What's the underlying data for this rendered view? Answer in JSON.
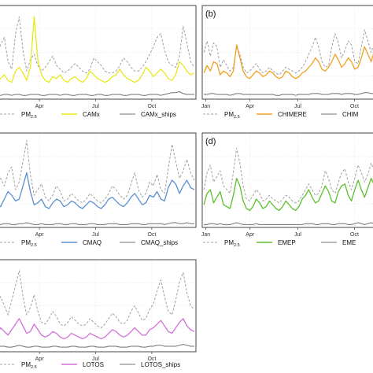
{
  "chart_data": [
    {
      "type": "line",
      "panel_label": "",
      "x_ticks": [
        "Apr",
        "Jul",
        "Oct"
      ],
      "legend": [
        {
          "text": "PM",
          "sub": "2.5"
        },
        {
          "text": "CAMx",
          "sub": ""
        },
        {
          "text": "CAMx_ships",
          "sub": ""
        }
      ],
      "colors": {
        "pm25": "#a0a0a0",
        "model": "#e8e81c",
        "ships": "#707070"
      },
      "ylim": [
        0,
        100
      ],
      "grid": true,
      "series": [
        {
          "key": "pm25",
          "values": [
            44,
            58,
            66,
            40,
            32,
            70,
            88,
            52,
            30,
            42,
            48,
            36,
            30,
            34,
            40,
            46,
            36,
            32,
            28,
            30,
            34,
            38,
            34,
            30,
            28,
            32,
            44,
            40,
            36,
            30,
            28,
            28,
            30,
            36,
            44,
            40,
            34,
            30,
            30,
            34,
            40,
            48,
            56,
            66,
            70,
            52,
            40,
            36,
            34,
            46,
            78,
            60,
            40,
            34
          ]
        },
        {
          "key": "model",
          "values": [
            16,
            22,
            26,
            20,
            18,
            30,
            34,
            28,
            20,
            34,
            88,
            42,
            26,
            20,
            18,
            24,
            22,
            26,
            20,
            18,
            22,
            24,
            20,
            18,
            22,
            30,
            26,
            22,
            20,
            18,
            20,
            24,
            26,
            32,
            26,
            22,
            20,
            18,
            20,
            26,
            34,
            30,
            24,
            28,
            32,
            28,
            22,
            20,
            26,
            40,
            36,
            30,
            26,
            28
          ]
        },
        {
          "key": "ships",
          "values": [
            4,
            4,
            5,
            5,
            4,
            5,
            5,
            4,
            4,
            5,
            5,
            5,
            4,
            4,
            5,
            5,
            5,
            4,
            5,
            5,
            4,
            4,
            5,
            5,
            5,
            4,
            4,
            5,
            5,
            4,
            4,
            5,
            5,
            5,
            4,
            4,
            5,
            5,
            5,
            4,
            4,
            5,
            5,
            5,
            4,
            5,
            6,
            7,
            7,
            8,
            6,
            5,
            5,
            5
          ]
        }
      ]
    },
    {
      "type": "line",
      "panel_label": "(b)",
      "x_ticks": [
        "Jan",
        "Apr",
        "Jul",
        "Oct"
      ],
      "legend": [
        {
          "text": "PM",
          "sub": "2.5"
        },
        {
          "text": "CHIMERE",
          "sub": ""
        },
        {
          "text": "CHIM",
          "sub": ""
        }
      ],
      "colors": {
        "pm25": "#a0a0a0",
        "model": "#f0a020",
        "ships": "#707070"
      },
      "ylim": [
        0,
        100
      ],
      "grid": true,
      "series": [
        {
          "key": "pm25",
          "values": [
            50,
            62,
            46,
            60,
            56,
            34,
            42,
            36,
            30,
            34,
            56,
            48,
            34,
            28,
            30,
            34,
            38,
            32,
            28,
            30,
            34,
            30,
            28,
            26,
            30,
            34,
            32,
            30,
            28,
            30,
            34,
            40,
            48,
            56,
            66,
            56,
            40,
            34,
            36,
            56,
            70,
            60,
            44,
            52,
            62,
            58,
            40,
            38,
            56,
            74,
            62,
            50,
            60,
            72
          ]
        },
        {
          "key": "model",
          "values": [
            28,
            36,
            30,
            40,
            38,
            26,
            30,
            28,
            24,
            30,
            58,
            44,
            30,
            24,
            22,
            26,
            30,
            28,
            24,
            26,
            30,
            28,
            24,
            22,
            24,
            30,
            28,
            24,
            22,
            24,
            28,
            30,
            34,
            38,
            44,
            40,
            32,
            30,
            34,
            40,
            48,
            42,
            34,
            38,
            44,
            40,
            32,
            34,
            44,
            56,
            48,
            40,
            52,
            66
          ]
        },
        {
          "key": "ships",
          "values": [
            5,
            5,
            6,
            6,
            5,
            5,
            5,
            5,
            4,
            5,
            6,
            6,
            5,
            5,
            5,
            5,
            5,
            5,
            5,
            5,
            5,
            5,
            4,
            4,
            5,
            5,
            5,
            5,
            4,
            5,
            5,
            5,
            5,
            6,
            6,
            6,
            5,
            5,
            5,
            6,
            6,
            6,
            5,
            6,
            6,
            6,
            5,
            5,
            6,
            7,
            7,
            6,
            6,
            7
          ]
        }
      ]
    },
    {
      "type": "line",
      "panel_label": "",
      "x_ticks": [
        "Apr",
        "Jul",
        "Oct"
      ],
      "legend": [
        {
          "text": "PM",
          "sub": "2.5"
        },
        {
          "text": "CMAQ",
          "sub": ""
        },
        {
          "text": "CMAQ_ships",
          "sub": ""
        }
      ],
      "colors": {
        "pm25": "#a0a0a0",
        "model": "#5b8fd0",
        "ships": "#707070"
      },
      "ylim": [
        0,
        100
      ],
      "grid": true,
      "series": [
        {
          "key": "pm25",
          "values": [
            60,
            52,
            44,
            58,
            64,
            40,
            48,
            70,
            92,
            56,
            34,
            40,
            46,
            32,
            28,
            34,
            44,
            38,
            28,
            30,
            36,
            32,
            28,
            26,
            30,
            36,
            32,
            28,
            26,
            30,
            36,
            44,
            40,
            34,
            30,
            34,
            46,
            58,
            40,
            32,
            36,
            48,
            44,
            56,
            40,
            36,
            62,
            88,
            70,
            52,
            60,
            72,
            58,
            50
          ]
        },
        {
          "key": "model",
          "values": [
            26,
            22,
            30,
            38,
            34,
            28,
            30,
            44,
            58,
            38,
            24,
            26,
            30,
            22,
            20,
            26,
            30,
            28,
            22,
            24,
            28,
            26,
            22,
            20,
            24,
            28,
            26,
            22,
            20,
            24,
            30,
            32,
            28,
            24,
            22,
            26,
            32,
            36,
            30,
            24,
            26,
            34,
            32,
            38,
            30,
            28,
            42,
            50,
            46,
            36,
            44,
            50,
            42,
            40
          ]
        },
        {
          "key": "ships",
          "values": [
            3,
            3,
            4,
            4,
            3,
            3,
            4,
            4,
            5,
            4,
            3,
            3,
            4,
            3,
            3,
            3,
            4,
            4,
            3,
            3,
            4,
            4,
            3,
            3,
            3,
            4,
            4,
            3,
            3,
            3,
            4,
            4,
            4,
            3,
            3,
            3,
            4,
            4,
            4,
            3,
            3,
            4,
            4,
            4,
            4,
            3,
            4,
            5,
            5,
            4,
            4,
            5,
            4,
            4
          ]
        }
      ]
    },
    {
      "type": "line",
      "panel_label": "(d)",
      "x_ticks": [
        "Jan",
        "Apr",
        "Jul",
        "Oct"
      ],
      "legend": [
        {
          "text": "PM",
          "sub": "2.5"
        },
        {
          "text": "EMEP",
          "sub": ""
        },
        {
          "text": "EME",
          "sub": ""
        }
      ],
      "colors": {
        "pm25": "#a0a0a0",
        "model": "#5cc02c",
        "ships": "#707070"
      },
      "ylim": [
        0,
        100
      ],
      "grid": true,
      "series": [
        {
          "key": "pm25",
          "values": [
            40,
            58,
            66,
            48,
            54,
            60,
            44,
            40,
            36,
            58,
            84,
            68,
            44,
            30,
            28,
            34,
            40,
            36,
            28,
            30,
            34,
            30,
            28,
            26,
            30,
            34,
            32,
            28,
            26,
            28,
            34,
            40,
            46,
            40,
            34,
            36,
            44,
            60,
            52,
            40,
            36,
            48,
            58,
            62,
            48,
            40,
            52,
            66,
            58,
            48,
            56,
            68,
            60,
            52
          ]
        },
        {
          "key": "model",
          "values": [
            24,
            36,
            40,
            26,
            32,
            38,
            24,
            22,
            20,
            34,
            52,
            44,
            28,
            20,
            18,
            22,
            30,
            26,
            20,
            22,
            28,
            24,
            20,
            18,
            22,
            28,
            24,
            20,
            18,
            22,
            30,
            34,
            40,
            32,
            26,
            28,
            36,
            44,
            38,
            28,
            26,
            38,
            44,
            46,
            34,
            28,
            40,
            50,
            40,
            32,
            42,
            52,
            44,
            36
          ]
        },
        {
          "key": "ships",
          "values": [
            3,
            3,
            4,
            4,
            3,
            4,
            3,
            3,
            3,
            4,
            5,
            4,
            3,
            3,
            3,
            3,
            4,
            3,
            3,
            3,
            3,
            3,
            3,
            3,
            3,
            3,
            3,
            3,
            3,
            3,
            3,
            4,
            4,
            4,
            3,
            3,
            4,
            4,
            4,
            3,
            3,
            4,
            4,
            4,
            3,
            3,
            4,
            5,
            4,
            3,
            4,
            5,
            4,
            4
          ]
        }
      ]
    },
    {
      "type": "line",
      "panel_label": "",
      "x_ticks": [
        "Apr",
        "Jul",
        "Oct"
      ],
      "legend": [
        {
          "text": "PM",
          "sub": "2.5"
        },
        {
          "text": "LOTOS",
          "sub": ""
        },
        {
          "text": "LOTOS_ships",
          "sub": ""
        }
      ],
      "colors": {
        "pm25": "#a0a0a0",
        "model": "#d070d8",
        "ships": "#707070"
      },
      "ylim": [
        0,
        100
      ],
      "grid": true,
      "series": [
        {
          "key": "pm25",
          "values": [
            46,
            60,
            50,
            40,
            56,
            72,
            88,
            60,
            40,
            48,
            62,
            44,
            32,
            30,
            36,
            44,
            38,
            30,
            28,
            32,
            38,
            34,
            30,
            28,
            30,
            36,
            32,
            28,
            26,
            30,
            36,
            42,
            38,
            32,
            30,
            34,
            44,
            50,
            42,
            34,
            36,
            46,
            52,
            66,
            78,
            60,
            44,
            40,
            56,
            76,
            86,
            64,
            50,
            46
          ]
        },
        {
          "key": "model",
          "values": [
            18,
            26,
            22,
            18,
            24,
            30,
            36,
            28,
            20,
            22,
            30,
            24,
            18,
            16,
            18,
            22,
            20,
            16,
            14,
            16,
            20,
            18,
            16,
            14,
            16,
            20,
            18,
            16,
            14,
            16,
            20,
            24,
            22,
            18,
            16,
            18,
            22,
            26,
            22,
            18,
            18,
            24,
            26,
            30,
            34,
            28,
            22,
            20,
            26,
            32,
            36,
            28,
            24,
            22
          ]
        },
        {
          "key": "ships",
          "values": [
            5,
            6,
            6,
            5,
            5,
            6,
            7,
            6,
            5,
            5,
            6,
            6,
            5,
            5,
            5,
            6,
            6,
            5,
            5,
            5,
            6,
            6,
            5,
            5,
            5,
            6,
            6,
            5,
            5,
            5,
            6,
            6,
            6,
            5,
            5,
            5,
            6,
            6,
            6,
            5,
            5,
            6,
            6,
            7,
            7,
            6,
            6,
            6,
            6,
            7,
            8,
            7,
            6,
            6
          ]
        }
      ]
    }
  ]
}
